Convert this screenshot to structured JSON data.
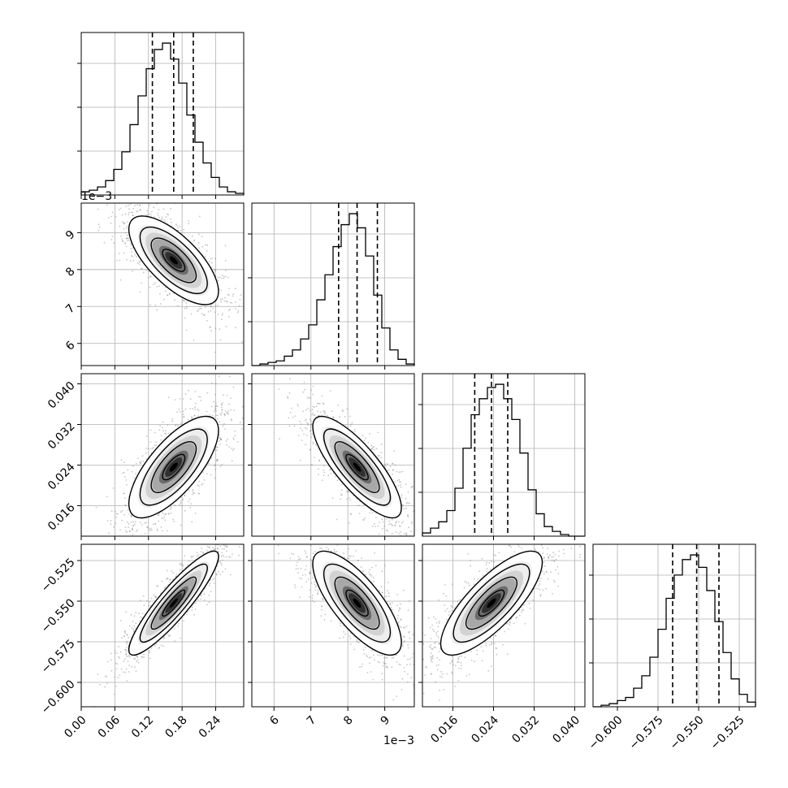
{
  "chart_data": {
    "type": "corner",
    "colors": {
      "hist_line": "#000000",
      "grid": "#b0b0b0",
      "scatter": "#808080",
      "density_dark": "#000000",
      "density_light": "#ffffff"
    },
    "grid": true,
    "quantile_lines": "dashed",
    "parameters": [
      {
        "range": [
          0.0,
          0.29
        ],
        "ticks": [
          "0.00",
          "0.06",
          "0.12",
          "0.18",
          "0.24"
        ],
        "tick_values": [
          0.0,
          0.06,
          0.12,
          0.18,
          0.24
        ],
        "offset_label": "",
        "quantiles": [
          0.127,
          0.165,
          0.2
        ],
        "histogram": {
          "bin_edges": [
            0.0,
            0.0145,
            0.029,
            0.0435,
            0.058,
            0.0725,
            0.087,
            0.1015,
            0.116,
            0.1305,
            0.145,
            0.1595,
            0.174,
            0.1885,
            0.203,
            0.2175,
            0.232,
            0.2465,
            0.261,
            0.2755,
            0.29
          ],
          "heights": [
            2,
            3,
            5,
            9,
            16,
            27,
            44,
            62,
            79,
            91,
            95,
            85,
            70,
            50,
            33,
            20,
            11,
            5,
            2,
            1
          ]
        }
      },
      {
        "range": [
          5.4,
          9.8
        ],
        "ticks": [
          "6",
          "7",
          "8",
          "9"
        ],
        "tick_values": [
          6,
          7,
          8,
          9
        ],
        "offset_label": "1e−3",
        "quantiles": [
          7.75,
          8.25,
          8.8
        ],
        "histogram": {
          "bin_edges": [
            5.4,
            5.62,
            5.84,
            6.06,
            6.28,
            6.5,
            6.72,
            6.94,
            7.16,
            7.38,
            7.6,
            7.82,
            8.04,
            8.26,
            8.48,
            8.7,
            8.92,
            9.14,
            9.36,
            9.58,
            9.8
          ],
          "heights": [
            0,
            1,
            2,
            3,
            6,
            10,
            17,
            26,
            42,
            58,
            76,
            90,
            97,
            88,
            70,
            45,
            24,
            10,
            4,
            1
          ]
        }
      },
      {
        "range": [
          0.01,
          0.042
        ],
        "ticks": [
          "0.016",
          "0.024",
          "0.032",
          "0.040"
        ],
        "tick_values": [
          0.016,
          0.024,
          0.032,
          0.04
        ],
        "offset_label": "",
        "quantiles": [
          0.0203,
          0.0236,
          0.0268
        ],
        "histogram": {
          "bin_edges": [
            0.01,
            0.0116,
            0.0132,
            0.0148,
            0.0164,
            0.018,
            0.0196,
            0.0212,
            0.0228,
            0.0244,
            0.026,
            0.0276,
            0.0292,
            0.0308,
            0.0324,
            0.034,
            0.0356,
            0.0372,
            0.0388,
            0.0404,
            0.042
          ],
          "heights": [
            2,
            5,
            9,
            16,
            30,
            55,
            76,
            86,
            93,
            95,
            86,
            73,
            52,
            29,
            14,
            6,
            3,
            1,
            0,
            0
          ]
        }
      },
      {
        "range": [
          -0.615,
          -0.515
        ],
        "ticks": [
          "−0.600",
          "−0.575",
          "−0.550",
          "−0.525"
        ],
        "tick_values": [
          -0.6,
          -0.575,
          -0.55,
          -0.525
        ],
        "offset_label": "",
        "quantiles": [
          -0.566,
          -0.5512,
          -0.5375
        ],
        "histogram": {
          "bin_edges": [
            -0.615,
            -0.61,
            -0.605,
            -0.6,
            -0.595,
            -0.59,
            -0.585,
            -0.58,
            -0.575,
            -0.57,
            -0.565,
            -0.56,
            -0.555,
            -0.55,
            -0.545,
            -0.54,
            -0.535,
            -0.53,
            -0.525,
            -0.52,
            -0.515
          ],
          "heights": [
            0,
            1,
            2,
            4,
            6,
            12,
            20,
            32,
            50,
            70,
            85,
            95,
            98,
            90,
            75,
            55,
            35,
            18,
            8,
            3
          ]
        }
      }
    ],
    "pairs": [
      {
        "x": 0,
        "y": 1,
        "center": [
          0.165,
          8.25
        ],
        "sigma": [
          0.04,
          0.6
        ],
        "correlation": -0.7
      },
      {
        "x": 0,
        "y": 2,
        "center": [
          0.165,
          0.0236
        ],
        "sigma": [
          0.04,
          0.005
        ],
        "correlation": 0.72
      },
      {
        "x": 1,
        "y": 2,
        "center": [
          8.25,
          0.0236
        ],
        "sigma": [
          0.6,
          0.005
        ],
        "correlation": -0.8
      },
      {
        "x": 0,
        "y": 3,
        "center": [
          0.165,
          -0.5512
        ],
        "sigma": [
          0.04,
          0.016
        ],
        "correlation": 0.9
      },
      {
        "x": 1,
        "y": 3,
        "center": [
          8.25,
          -0.5512
        ],
        "sigma": [
          0.6,
          0.016
        ],
        "correlation": -0.75
      },
      {
        "x": 2,
        "y": 3,
        "center": [
          0.0236,
          -0.5512
        ],
        "sigma": [
          0.005,
          0.016
        ],
        "correlation": 0.78
      }
    ]
  }
}
